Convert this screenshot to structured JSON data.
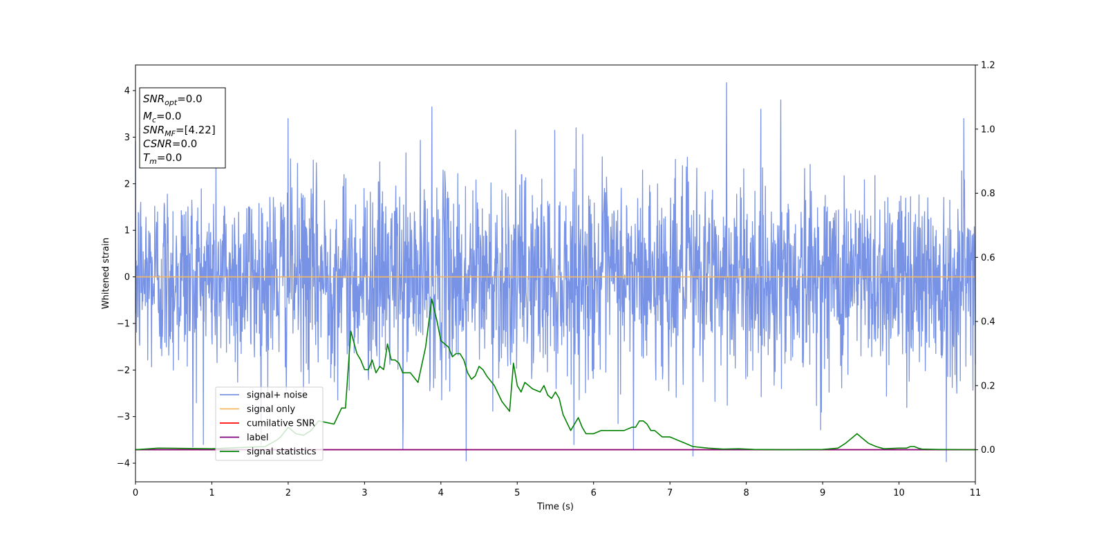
{
  "chart_data": {
    "type": "line",
    "xlabel": "Time (s)",
    "ylabel": "Whitened strain",
    "xlim": [
      0,
      11
    ],
    "ylim": [
      -4.4,
      4.55
    ],
    "y2lim": [
      -0.1,
      1.2
    ],
    "x_ticks": [
      "0",
      "1",
      "2",
      "3",
      "4",
      "5",
      "6",
      "7",
      "8",
      "9",
      "10",
      "11"
    ],
    "y_ticks": [
      "4",
      "3",
      "2",
      "1",
      "0",
      "−1",
      "−2",
      "−3",
      "−4"
    ],
    "y2_ticks": [
      "0.0",
      "0.2",
      "0.4",
      "0.6",
      "0.8",
      "1.0",
      "1.2"
    ],
    "grid": false,
    "legend_position": "lower-left",
    "info_box": {
      "snr_opt": {
        "base": "SNR",
        "sub": "opt",
        "value": "=0.0"
      },
      "mc": {
        "base": "M",
        "sub": "c",
        "value": "=0.0"
      },
      "snr_mf": {
        "base": "SNR",
        "sub": "MF",
        "value": "=[4.22]"
      },
      "csnr": {
        "base": "CSNR",
        "value": "=0.0"
      },
      "tm": {
        "base": "T",
        "sub": "m",
        "value": "=0.0"
      }
    },
    "series": [
      {
        "name": "signal+ noise",
        "axis": "left",
        "color": "#7893e6",
        "style": "noise",
        "y_min": -3.97,
        "y_max": 4.17,
        "notable_peaks": [
          [
            0.75,
            -3.65
          ],
          [
            2.0,
            3.4
          ],
          [
            3.5,
            -3.7
          ],
          [
            3.88,
            3.65
          ],
          [
            4.33,
            -3.95
          ],
          [
            5.77,
            3.2
          ],
          [
            6.52,
            -3.7
          ],
          [
            7.3,
            -3.85
          ],
          [
            7.74,
            4.17
          ],
          [
            8.45,
            3.8
          ],
          [
            10.62,
            -3.97
          ],
          [
            10.85,
            3.4
          ]
        ]
      },
      {
        "name": "signal only",
        "axis": "left",
        "color": "#f5b860",
        "x": [
          0,
          11
        ],
        "y": [
          0,
          0
        ]
      },
      {
        "name": "cumilative SNR",
        "axis": "right",
        "color": "#ff0000",
        "x": [
          0,
          11
        ],
        "y": [
          0,
          0
        ]
      },
      {
        "name": "label",
        "axis": "right",
        "color": "#800080",
        "x": [
          0,
          11
        ],
        "y": [
          0,
          0
        ]
      },
      {
        "name": "signal statistics",
        "axis": "right",
        "color": "#008000",
        "x": [
          0,
          0.3,
          1.0,
          1.7,
          1.85,
          1.9,
          2.0,
          2.1,
          2.2,
          2.3,
          2.4,
          2.5,
          2.6,
          2.7,
          2.75,
          2.82,
          2.9,
          2.95,
          3.0,
          3.05,
          3.1,
          3.15,
          3.2,
          3.25,
          3.3,
          3.35,
          3.4,
          3.45,
          3.5,
          3.6,
          3.7,
          3.8,
          3.88,
          3.95,
          4.0,
          4.05,
          4.1,
          4.15,
          4.2,
          4.25,
          4.3,
          4.35,
          4.4,
          4.45,
          4.5,
          4.55,
          4.6,
          4.7,
          4.8,
          4.9,
          4.95,
          5.0,
          5.05,
          5.1,
          5.15,
          5.2,
          5.3,
          5.35,
          5.4,
          5.45,
          5.5,
          5.55,
          5.6,
          5.7,
          5.8,
          5.85,
          5.9,
          6.0,
          6.1,
          6.15,
          6.2,
          6.3,
          6.4,
          6.5,
          6.55,
          6.6,
          6.65,
          6.7,
          6.75,
          6.8,
          6.9,
          7.0,
          7.1,
          7.2,
          7.3,
          7.5,
          7.7,
          7.9,
          8.1,
          8.5,
          9.0,
          9.2,
          9.3,
          9.4,
          9.45,
          9.5,
          9.55,
          9.6,
          9.7,
          9.8,
          10.0,
          10.1,
          10.15,
          10.2,
          10.25,
          10.3,
          10.5,
          11.0
        ],
        "y": [
          0.0,
          0.005,
          0.003,
          0.01,
          0.03,
          0.04,
          0.07,
          0.05,
          0.045,
          0.06,
          0.09,
          0.085,
          0.08,
          0.13,
          0.13,
          0.37,
          0.3,
          0.28,
          0.25,
          0.25,
          0.28,
          0.24,
          0.26,
          0.25,
          0.33,
          0.28,
          0.28,
          0.27,
          0.24,
          0.24,
          0.21,
          0.32,
          0.47,
          0.4,
          0.34,
          0.33,
          0.32,
          0.29,
          0.3,
          0.3,
          0.28,
          0.24,
          0.22,
          0.23,
          0.26,
          0.25,
          0.23,
          0.2,
          0.15,
          0.12,
          0.27,
          0.2,
          0.18,
          0.21,
          0.2,
          0.19,
          0.18,
          0.2,
          0.17,
          0.16,
          0.18,
          0.16,
          0.11,
          0.06,
          0.1,
          0.07,
          0.05,
          0.05,
          0.06,
          0.06,
          0.06,
          0.06,
          0.06,
          0.07,
          0.07,
          0.09,
          0.09,
          0.08,
          0.06,
          0.06,
          0.04,
          0.04,
          0.03,
          0.02,
          0.01,
          0.005,
          0.002,
          0.003,
          0.001,
          0.0,
          0.001,
          0.005,
          0.02,
          0.04,
          0.05,
          0.04,
          0.03,
          0.02,
          0.01,
          0.003,
          0.005,
          0.005,
          0.01,
          0.01,
          0.005,
          0.002,
          0.001,
          0.0
        ]
      }
    ]
  }
}
